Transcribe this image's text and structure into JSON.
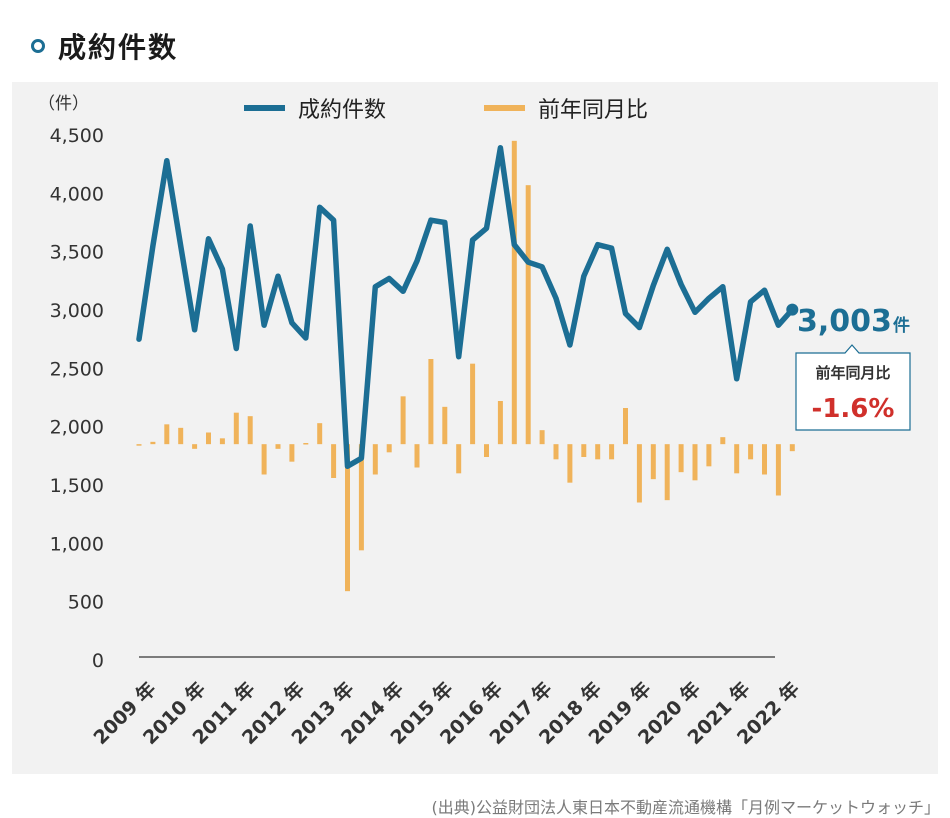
{
  "title": "成約件数",
  "source": "(出典)公益財団法人東日本不動産流通機構「月例マーケットウォッチ」",
  "colors": {
    "line": "#1c6e94",
    "bar": "#f0b35a",
    "accent_red": "#d0302b",
    "panel": "#f2f2f2"
  },
  "chart_data": {
    "type": "line+bar",
    "yunit": "（件）",
    "ylim": [
      0,
      4500
    ],
    "yticks": [
      "4,500",
      "4,000",
      "3,500",
      "3,000",
      "2,500",
      "2,000",
      "1,500",
      "1,000",
      "500",
      "0"
    ],
    "ytick_values": [
      4500,
      4000,
      3500,
      3000,
      2500,
      2000,
      1500,
      1000,
      500,
      0
    ],
    "xticks": [
      "2009 年",
      "2010 年",
      "2011 年",
      "2012 年",
      "2013 年",
      "2014 年",
      "2015 年",
      "2016 年",
      "2017 年",
      "2018 年",
      "2019 年",
      "2020 年",
      "2021 年",
      "2022 年"
    ],
    "legend": {
      "position": "top",
      "line": "成約件数",
      "bar": "前年同月比"
    },
    "bar_baseline": 1850,
    "series": [
      {
        "name": "成約件数",
        "kind": "line",
        "values": [
          2750,
          3550,
          4280,
          3550,
          2830,
          3610,
          3350,
          2670,
          3720,
          2870,
          3290,
          2890,
          2760,
          3880,
          3770,
          1660,
          1730,
          3200,
          3270,
          3160,
          3420,
          3770,
          3750,
          2600,
          3600,
          3700,
          4390,
          3560,
          3410,
          3370,
          3100,
          2700,
          3290,
          3560,
          3530,
          2970,
          2850,
          3210,
          3520,
          3220,
          2980,
          3100,
          3200,
          2410,
          3070,
          3170,
          2870,
          3003
        ]
      },
      {
        "name": "前年同月比",
        "kind": "bar",
        "values": [
          1850,
          1870,
          2020,
          1990,
          1810,
          1950,
          1900,
          2120,
          2090,
          1590,
          1810,
          1700,
          1860,
          2030,
          1560,
          590,
          940,
          1590,
          1780,
          2260,
          1650,
          2580,
          2170,
          1600,
          2540,
          1740,
          2220,
          4450,
          4070,
          1970,
          1720,
          1520,
          1740,
          1720,
          1720,
          2160,
          1350,
          1550,
          1370,
          1610,
          1540,
          1660,
          1910,
          1600,
          1720,
          1590,
          1410,
          1790
        ]
      }
    ],
    "annotations": {
      "last_value_number": "3,003",
      "last_value_unit": "件",
      "box_label": "前年同月比",
      "box_value": "-1.6%"
    }
  }
}
